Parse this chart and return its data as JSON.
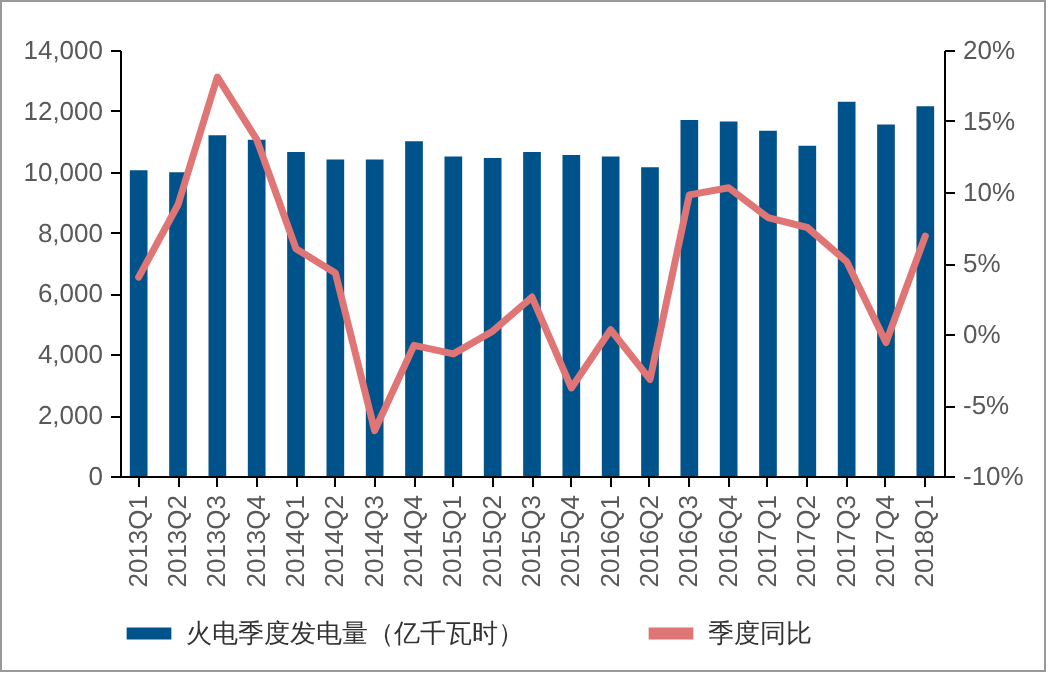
{
  "chart_data": {
    "type": "bar",
    "categories": [
      "2013Q1",
      "2013Q2",
      "2013Q3",
      "2013Q4",
      "2014Q1",
      "2014Q2",
      "2014Q3",
      "2014Q4",
      "2015Q1",
      "2015Q2",
      "2015Q3",
      "2015Q4",
      "2016Q1",
      "2016Q2",
      "2016Q3",
      "2016Q4",
      "2017Q1",
      "2017Q2",
      "2017Q3",
      "2017Q4",
      "2018Q1"
    ],
    "series": [
      {
        "name": "火电季度发电量（亿千瓦时）",
        "color": "#00538a",
        "values": [
          10050,
          9980,
          11200,
          11050,
          10650,
          10400,
          10400,
          11000,
          10500,
          10450,
          10650,
          10550,
          10500,
          10150,
          11700,
          11650,
          11350,
          10850,
          12300,
          11550,
          12150
        ]
      },
      {
        "name": "季度同比",
        "color": "#e07575",
        "type": "line",
        "axis": "y2",
        "values": [
          4.0,
          9.1,
          18.1,
          13.7,
          6.0,
          4.3,
          -6.8,
          -0.8,
          -1.4,
          0.2,
          2.6,
          -3.8,
          0.3,
          -3.2,
          9.8,
          10.3,
          8.2,
          7.5,
          5.1,
          -0.6,
          6.9
        ]
      }
    ],
    "ylim": [
      0,
      14000
    ],
    "yticks": [
      {
        "value": 0,
        "label": "0"
      },
      {
        "value": 2000,
        "label": "2,000"
      },
      {
        "value": 4000,
        "label": "4,000"
      },
      {
        "value": 6000,
        "label": "6,000"
      },
      {
        "value": 8000,
        "label": "8,000"
      },
      {
        "value": 10000,
        "label": "10,000"
      },
      {
        "value": 12000,
        "label": "12,000"
      },
      {
        "value": 14000,
        "label": "14,000"
      }
    ],
    "y2lim": [
      -10,
      20
    ],
    "y2ticks": [
      {
        "value": -10,
        "label": "-10%"
      },
      {
        "value": -5,
        "label": "-5%"
      },
      {
        "value": 0,
        "label": "0%"
      },
      {
        "value": 5,
        "label": "5%"
      },
      {
        "value": 10,
        "label": "10%"
      },
      {
        "value": 15,
        "label": "15%"
      },
      {
        "value": 20,
        "label": "20%"
      }
    ],
    "legend": "bottom",
    "grid": false,
    "marker": "none"
  }
}
